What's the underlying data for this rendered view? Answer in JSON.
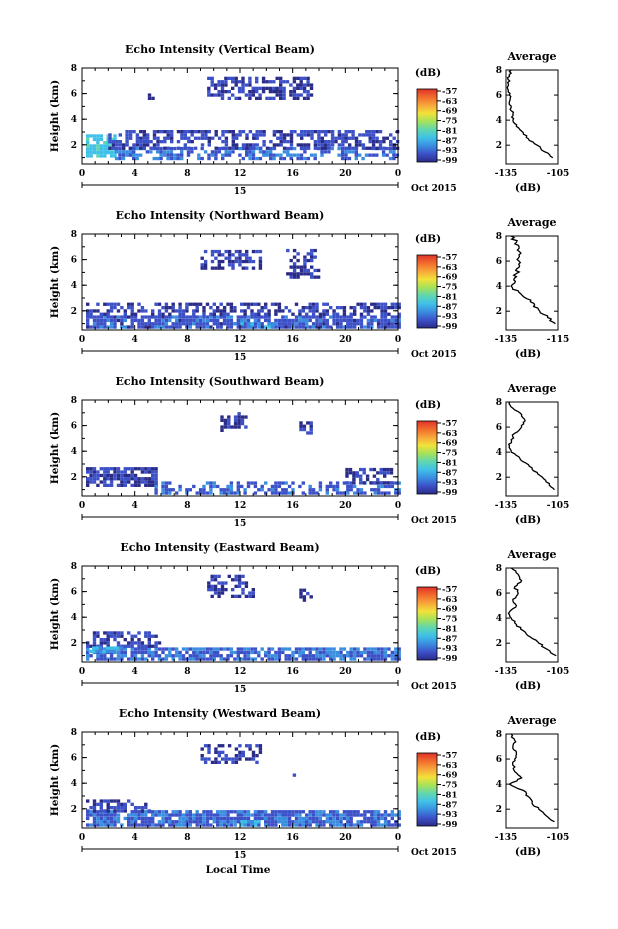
{
  "chart_data": [
    {
      "type": "heatmap",
      "title": "Echo Intensity (Vertical Beam)",
      "ylabel": "Height (km)",
      "xticks": [
        "0",
        "4",
        "8",
        "12",
        "16",
        "20",
        "0"
      ],
      "yticks": [
        "2",
        "4",
        "6",
        "8"
      ],
      "date_marker": "15",
      "date_label": "Oct 2015",
      "xlim": [
        0,
        24
      ],
      "ylim": [
        0.5,
        8
      ],
      "colorbar": {
        "label": "(dB)",
        "ticks": [
          "-57",
          "-63",
          "-69",
          "-75",
          "-81",
          "-87",
          "-93",
          "-99"
        ]
      },
      "echo_regions": [
        {
          "x": [
            0.3,
            2.5
          ],
          "y": [
            1.0,
            2.7
          ],
          "level": 0.35
        },
        {
          "x": [
            2.5,
            24
          ],
          "y": [
            0.8,
            1.6
          ],
          "level": 0.18
        },
        {
          "x": [
            2.0,
            24
          ],
          "y": [
            1.6,
            2.9
          ],
          "level": 0.08
        },
        {
          "x": [
            9.5,
            17.5
          ],
          "y": [
            5.5,
            7.2
          ],
          "level": 0.06
        },
        {
          "x": [
            5.0,
            5.5
          ],
          "y": [
            5.5,
            6.2
          ],
          "level": 0.04
        }
      ],
      "average_profile": {
        "title": "Average",
        "xlabel": "(dB)",
        "xticks": [
          "-135",
          "-105"
        ],
        "yticks": [
          "2",
          "4",
          "6",
          "8"
        ],
        "xlim": [
          -135,
          -105
        ],
        "ylim": [
          0.5,
          8
        ],
        "height": [
          8.0,
          7.5,
          7.0,
          6.5,
          6.0,
          5.5,
          5.0,
          4.5,
          4.0,
          3.5,
          3.0,
          2.5,
          2.0,
          1.5,
          1.0
        ],
        "intensity": [
          -132,
          -133,
          -134,
          -134,
          -133,
          -133,
          -132,
          -131,
          -131,
          -129,
          -125,
          -122,
          -117,
          -113,
          -108
        ]
      }
    },
    {
      "type": "heatmap",
      "title": "Echo Intensity (Northward Beam)",
      "ylabel": "Height (km)",
      "xticks": [
        "0",
        "4",
        "8",
        "12",
        "16",
        "20",
        "0"
      ],
      "yticks": [
        "2",
        "4",
        "6",
        "8"
      ],
      "date_marker": "15",
      "date_label": "Oct 2015",
      "xlim": [
        0,
        24
      ],
      "ylim": [
        0.5,
        8
      ],
      "colorbar": {
        "label": "(dB)",
        "ticks": [
          "-57",
          "-63",
          "-69",
          "-75",
          "-81",
          "-87",
          "-93",
          "-99"
        ]
      },
      "echo_regions": [
        {
          "x": [
            0.3,
            24
          ],
          "y": [
            0.6,
            1.6
          ],
          "level": 0.12
        },
        {
          "x": [
            0.3,
            24
          ],
          "y": [
            1.6,
            2.5
          ],
          "level": 0.06
        },
        {
          "x": [
            9.0,
            13.5
          ],
          "y": [
            5.2,
            6.5
          ],
          "level": 0.05
        },
        {
          "x": [
            15.5,
            18.0
          ],
          "y": [
            4.5,
            6.6
          ],
          "level": 0.04
        },
        {
          "x": [
            11.5,
            14.5
          ],
          "y": [
            0.6,
            1.0
          ],
          "level": 0.3
        }
      ],
      "average_profile": {
        "title": "Average",
        "xlabel": "(dB)",
        "xticks": [
          "-135",
          "-115"
        ],
        "yticks": [
          "2",
          "4",
          "6",
          "8"
        ],
        "xlim": [
          -135,
          -115
        ],
        "ylim": [
          0.5,
          8
        ],
        "height": [
          8.0,
          7.5,
          7.0,
          6.5,
          6.0,
          5.5,
          5.0,
          4.5,
          4.0,
          3.5,
          3.0,
          2.5,
          2.0,
          1.5,
          1.0
        ],
        "intensity": [
          -133,
          -131,
          -130,
          -130,
          -130,
          -130,
          -131,
          -132,
          -133,
          -130,
          -127,
          -124,
          -122,
          -119,
          -116
        ]
      }
    },
    {
      "type": "heatmap",
      "title": "Echo Intensity (Southward Beam)",
      "ylabel": "Height (km)",
      "xticks": [
        "0",
        "4",
        "8",
        "12",
        "16",
        "20",
        "0"
      ],
      "yticks": [
        "2",
        "4",
        "6",
        "8"
      ],
      "date_marker": "15",
      "date_label": "Oct 2015",
      "xlim": [
        0,
        24
      ],
      "ylim": [
        0.5,
        8
      ],
      "colorbar": {
        "label": "(dB)",
        "ticks": [
          "-57",
          "-63",
          "-69",
          "-75",
          "-81",
          "-87",
          "-93",
          "-99"
        ]
      },
      "echo_regions": [
        {
          "x": [
            0.3,
            5.5
          ],
          "y": [
            1.2,
            2.6
          ],
          "level": 0.07
        },
        {
          "x": [
            5.5,
            24
          ],
          "y": [
            0.6,
            1.4
          ],
          "level": 0.14
        },
        {
          "x": [
            10.5,
            12.5
          ],
          "y": [
            5.5,
            6.8
          ],
          "level": 0.05
        },
        {
          "x": [
            16.5,
            17.5
          ],
          "y": [
            5.3,
            6.2
          ],
          "level": 0.04
        },
        {
          "x": [
            20.0,
            23.5
          ],
          "y": [
            1.4,
            2.6
          ],
          "level": 0.05
        }
      ],
      "average_profile": {
        "title": "Average",
        "xlabel": "(dB)",
        "xticks": [
          "-135",
          "-105"
        ],
        "yticks": [
          "2",
          "4",
          "6",
          "8"
        ],
        "xlim": [
          -135,
          -105
        ],
        "ylim": [
          0.5,
          8
        ],
        "height": [
          8.0,
          7.5,
          7.0,
          6.5,
          6.0,
          5.5,
          5.0,
          4.5,
          4.0,
          3.5,
          3.0,
          2.5,
          2.0,
          1.5,
          1.0
        ],
        "intensity": [
          -133,
          -131,
          -126,
          -124,
          -126,
          -130,
          -132,
          -133,
          -132,
          -127,
          -122,
          -119,
          -114,
          -110,
          -107
        ]
      }
    },
    {
      "type": "heatmap",
      "title": "Echo Intensity (Eastward Beam)",
      "ylabel": "Height (km)",
      "xticks": [
        "0",
        "4",
        "8",
        "12",
        "16",
        "20",
        "0"
      ],
      "yticks": [
        "2",
        "4",
        "6",
        "8"
      ],
      "date_marker": "15",
      "date_label": "Oct 2015",
      "xlim": [
        0,
        24
      ],
      "ylim": [
        0.5,
        8
      ],
      "colorbar": {
        "label": "(dB)",
        "ticks": [
          "-57",
          "-63",
          "-69",
          "-75",
          "-81",
          "-87",
          "-93",
          "-99"
        ]
      },
      "echo_regions": [
        {
          "x": [
            0.3,
            24
          ],
          "y": [
            0.6,
            1.6
          ],
          "level": 0.16
        },
        {
          "x": [
            0.3,
            6.0
          ],
          "y": [
            1.6,
            2.7
          ],
          "level": 0.07
        },
        {
          "x": [
            9.5,
            13.0
          ],
          "y": [
            5.5,
            7.2
          ],
          "level": 0.05
        },
        {
          "x": [
            16.5,
            17.5
          ],
          "y": [
            5.2,
            6.2
          ],
          "level": 0.04
        },
        {
          "x": [
            0.5,
            3.0
          ],
          "y": [
            1.2,
            1.6
          ],
          "level": 0.32
        }
      ],
      "average_profile": {
        "title": "Average",
        "xlabel": "(dB)",
        "xticks": [
          "-135",
          "-105"
        ],
        "yticks": [
          "2",
          "4",
          "6",
          "8"
        ],
        "xlim": [
          -135,
          -105
        ],
        "ylim": [
          0.5,
          8
        ],
        "height": [
          8.0,
          7.5,
          7.0,
          6.5,
          6.0,
          5.5,
          5.0,
          4.5,
          4.0,
          3.5,
          3.0,
          2.5,
          2.0,
          1.5,
          1.0
        ],
        "intensity": [
          -132,
          -128,
          -126,
          -130,
          -128,
          -131,
          -129,
          -133,
          -132,
          -129,
          -125,
          -121,
          -116,
          -111,
          -106
        ]
      }
    },
    {
      "type": "heatmap",
      "title": "Echo Intensity (Westward Beam)",
      "ylabel": "Height (km)",
      "xlabel": "Local Time",
      "xticks": [
        "0",
        "4",
        "8",
        "12",
        "16",
        "20",
        "0"
      ],
      "yticks": [
        "2",
        "4",
        "6",
        "8"
      ],
      "date_marker": "15",
      "date_label": "Oct 2015",
      "xlim": [
        0,
        24
      ],
      "ylim": [
        0.5,
        8
      ],
      "colorbar": {
        "label": "(dB)",
        "ticks": [
          "-57",
          "-63",
          "-69",
          "-75",
          "-81",
          "-87",
          "-93",
          "-99"
        ]
      },
      "echo_regions": [
        {
          "x": [
            0.3,
            24
          ],
          "y": [
            0.6,
            1.7
          ],
          "level": 0.15
        },
        {
          "x": [
            0.3,
            5.0
          ],
          "y": [
            1.7,
            2.7
          ],
          "level": 0.06
        },
        {
          "x": [
            9.0,
            13.5
          ],
          "y": [
            5.5,
            7.0
          ],
          "level": 0.05
        },
        {
          "x": [
            16.0,
            16.5
          ],
          "y": [
            4.5,
            5.0
          ],
          "level": 0.04
        },
        {
          "x": [
            11.5,
            13.5
          ],
          "y": [
            0.6,
            1.0
          ],
          "level": 0.28
        }
      ],
      "average_profile": {
        "title": "Average",
        "xlabel": "(dB)",
        "xticks": [
          "-135",
          "-105"
        ],
        "yticks": [
          "2",
          "4",
          "6",
          "8"
        ],
        "xlim": [
          -135,
          -105
        ],
        "ylim": [
          0.5,
          8
        ],
        "height": [
          8.0,
          7.5,
          7.0,
          6.5,
          6.0,
          5.5,
          5.0,
          4.5,
          4.0,
          3.5,
          3.0,
          2.5,
          2.0,
          1.5,
          1.0
        ],
        "intensity": [
          -132,
          -130,
          -131,
          -129,
          -130,
          -131,
          -130,
          -126,
          -133,
          -125,
          -122,
          -120,
          -116,
          -112,
          -107
        ]
      }
    }
  ],
  "colors": {
    "background": "#ffffff",
    "axis": "#000000",
    "echo_base": "#2b2f8a",
    "colormap": [
      "#2a2c88",
      "#3c50c8",
      "#3a8ee0",
      "#3fc0e8",
      "#5fd6b0",
      "#a6e25a",
      "#f2e23a",
      "#f8a63a",
      "#f26b2c",
      "#e0322a"
    ]
  }
}
